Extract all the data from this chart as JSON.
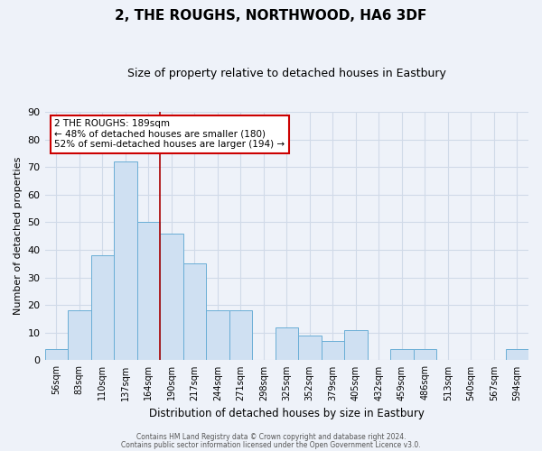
{
  "title": "2, THE ROUGHS, NORTHWOOD, HA6 3DF",
  "subtitle": "Size of property relative to detached houses in Eastbury",
  "xlabel": "Distribution of detached houses by size in Eastbury",
  "ylabel": "Number of detached properties",
  "bar_labels": [
    "56sqm",
    "83sqm",
    "110sqm",
    "137sqm",
    "164sqm",
    "190sqm",
    "217sqm",
    "244sqm",
    "271sqm",
    "298sqm",
    "325sqm",
    "352sqm",
    "379sqm",
    "405sqm",
    "432sqm",
    "459sqm",
    "486sqm",
    "513sqm",
    "540sqm",
    "567sqm",
    "594sqm"
  ],
  "bar_values": [
    4,
    18,
    38,
    72,
    50,
    46,
    35,
    18,
    18,
    0,
    12,
    9,
    7,
    11,
    0,
    4,
    4,
    0,
    0,
    0,
    4
  ],
  "bar_color": "#cfe0f2",
  "bar_edge_color": "#6aaed6",
  "vline_x_idx": 5,
  "vline_color": "#aa0000",
  "annotation_text": "2 THE ROUGHS: 189sqm\n← 48% of detached houses are smaller (180)\n52% of semi-detached houses are larger (194) →",
  "annotation_box_color": "#ffffff",
  "annotation_box_edge": "#cc0000",
  "ylim": [
    0,
    90
  ],
  "yticks": [
    0,
    10,
    20,
    30,
    40,
    50,
    60,
    70,
    80,
    90
  ],
  "footer_line1": "Contains HM Land Registry data © Crown copyright and database right 2024.",
  "footer_line2": "Contains public sector information licensed under the Open Government Licence v3.0.",
  "bg_color": "#eef2f9",
  "grid_color": "#d0dae8"
}
